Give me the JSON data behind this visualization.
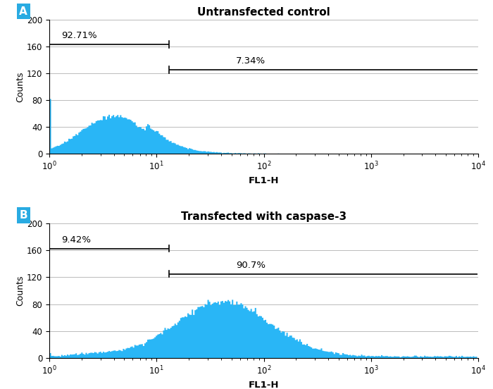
{
  "panel_A": {
    "title": "Untransfected control",
    "label": "A",
    "gate1_label": "92.71%",
    "gate2_label": "7.34%",
    "gate1_x_start": 1.0,
    "gate1_x_end": 13.0,
    "gate1_y": 163,
    "gate2_x_start": 13.0,
    "gate2_x_end": 9800.0,
    "gate2_y": 125,
    "hist_peak_log": 0.6,
    "hist_peak_count": 82,
    "hist_spread": 0.3
  },
  "panel_B": {
    "title": "Transfected with caspase-3",
    "label": "B",
    "gate1_label": "9.42%",
    "gate2_label": "90.7%",
    "gate1_x_start": 1.0,
    "gate1_x_end": 13.0,
    "gate1_y": 163,
    "gate2_x_start": 13.0,
    "gate2_x_end": 9800.0,
    "gate2_y": 125,
    "hist_peak_log": 1.62,
    "hist_peak_count": 87,
    "hist_spread": 0.44
  },
  "xlim_log": [
    1.0,
    10000.0
  ],
  "ylim": [
    0,
    200
  ],
  "yticks": [
    0,
    40,
    80,
    120,
    160,
    200
  ],
  "xlabel": "FL1-H",
  "ylabel": "Counts",
  "hist_color": "#29B6F6",
  "background_color": "#ffffff",
  "grid_color": "#bbbbbb",
  "label_bg_color": "#29ABE2",
  "label_text_color": "#ffffff",
  "fig_width": 7.0,
  "fig_height": 5.52,
  "dpi": 100
}
